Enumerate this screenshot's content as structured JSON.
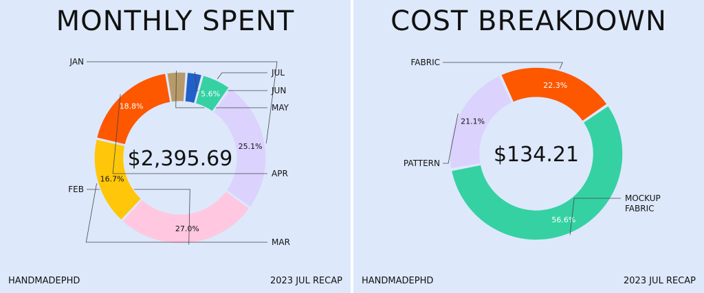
{
  "footer": {
    "brand": "HANDMADEPHD",
    "recap": "2023 JUL RECAP"
  },
  "chart_data": [
    {
      "type": "pie",
      "title": "MONTHLY SPENT",
      "center_text": "$2,395.69",
      "categories": [
        "JAN",
        "FEB",
        "MAR",
        "APR",
        "MAY",
        "JUN",
        "JUL"
      ],
      "values": [
        25.1,
        27.0,
        16.7,
        18.8,
        3.8,
        3.0,
        5.6
      ],
      "data_labels": [
        "25.1%",
        "27.0%",
        "16.7%",
        "18.8%",
        "",
        "",
        "5.6%"
      ],
      "colors": [
        "#dbd2fd",
        "#ffc7e0",
        "#ffc60a",
        "#fd5700",
        "#b89a6a",
        "#2060c8",
        "#35d1a3"
      ],
      "pct_label_colors": [
        "#111111",
        "#111111",
        "#111111",
        "#ffffff",
        "#111111",
        "#111111",
        "#ffffff"
      ]
    },
    {
      "type": "pie",
      "title": "COST BREAKDOWN",
      "center_text": "$134.21",
      "categories": [
        "FABRIC",
        "MOCKUP\nFABRIC",
        "PATTERN"
      ],
      "values": [
        22.3,
        56.6,
        21.1
      ],
      "data_labels": [
        "22.3%",
        "56.6%",
        "21.1%"
      ],
      "colors": [
        "#fd5700",
        "#35d1a3",
        "#dbd2fd"
      ],
      "pct_label_colors": [
        "#ffffff",
        "#ffffff",
        "#111111"
      ]
    }
  ]
}
